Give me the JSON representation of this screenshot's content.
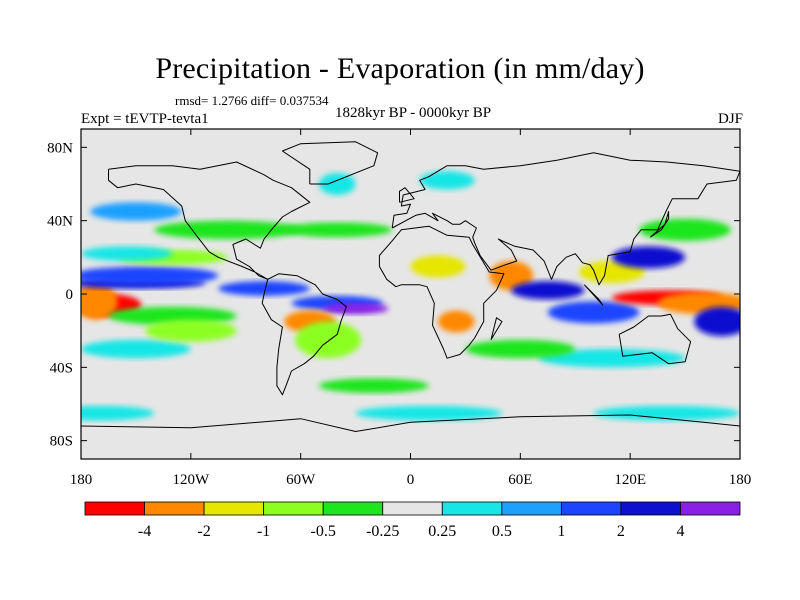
{
  "title": "Precipitation - Evaporation (in mm/day)",
  "stats_text": "rmsd= 1.2766 diff= 0.037534",
  "period": "1828kyr BP - 0000kyr BP",
  "experiment": "Expt = tEVTP-tevta1",
  "season": "DJF",
  "colors": {
    "background": "#e6e6e6",
    "frame": "#000000",
    "coast": "#000000"
  },
  "chart_data": {
    "type": "heatmap",
    "title": "Precipitation - Evaporation (in mm/day)",
    "units": "mm/day",
    "xlim": [
      -180,
      180
    ],
    "ylim": [
      -90,
      90
    ],
    "x_ticks": [
      {
        "value": -180,
        "label": "180"
      },
      {
        "value": -120,
        "label": "120W"
      },
      {
        "value": -60,
        "label": "60W"
      },
      {
        "value": 0,
        "label": "0"
      },
      {
        "value": 60,
        "label": "60E"
      },
      {
        "value": 120,
        "label": "120E"
      },
      {
        "value": 180,
        "label": "180"
      }
    ],
    "y_ticks": [
      {
        "value": 80,
        "label": "80N"
      },
      {
        "value": 40,
        "label": "40N"
      },
      {
        "value": 0,
        "label": "0"
      },
      {
        "value": -40,
        "label": "40S"
      },
      {
        "value": -80,
        "label": "80S"
      }
    ],
    "levels": [
      {
        "color": "#ff0000",
        "range": "< -4"
      },
      {
        "color": "#ff8800",
        "range": "-4 to -2"
      },
      {
        "color": "#e6e600",
        "range": "-2 to -1"
      },
      {
        "color": "#8cff20",
        "range": "-1 to -0.5"
      },
      {
        "color": "#1ee61e",
        "range": "-0.5 to -0.25"
      },
      {
        "color": "#e6e6e6",
        "range": "-0.25 to 0.25"
      },
      {
        "color": "#18e6e6",
        "range": "0.25 to 0.5"
      },
      {
        "color": "#1ea0ff",
        "range": "0.5 to 1"
      },
      {
        "color": "#1e44ff",
        "range": "1 to 2"
      },
      {
        "color": "#0f0fd0",
        "range": "2 to 4"
      },
      {
        "color": "#8a20e6",
        "range": "> 4"
      }
    ],
    "colorbar_labels": [
      "-4",
      "-2",
      "-1",
      "-0.5",
      "-0.25",
      "0.25",
      "0.5",
      "1",
      "2",
      "4"
    ],
    "regions": [
      {
        "lon": -165,
        "lat": -6,
        "rlon": 18,
        "rlat": 6,
        "level": 0
      },
      {
        "lon": -172,
        "lat": -4,
        "rlon": 12,
        "rlat": 10,
        "level": 1
      },
      {
        "lon": -150,
        "lat": 6,
        "rlon": 38,
        "rlat": 3,
        "level": 9
      },
      {
        "lon": -145,
        "lat": 10,
        "rlon": 40,
        "rlat": 5,
        "level": 8
      },
      {
        "lon": -130,
        "lat": 20,
        "rlon": 30,
        "rlat": 4,
        "level": 3
      },
      {
        "lon": -155,
        "lat": 22,
        "rlon": 25,
        "rlat": 4,
        "level": 6
      },
      {
        "lon": -130,
        "lat": -12,
        "rlon": 35,
        "rlat": 5,
        "level": 4
      },
      {
        "lon": -150,
        "lat": -30,
        "rlon": 30,
        "rlat": 5,
        "level": 6
      },
      {
        "lon": -120,
        "lat": -20,
        "rlon": 25,
        "rlat": 6,
        "level": 3
      },
      {
        "lon": -80,
        "lat": 3,
        "rlon": 25,
        "rlat": 4,
        "level": 8
      },
      {
        "lon": -40,
        "lat": -5,
        "rlon": 25,
        "rlat": 4,
        "level": 8
      },
      {
        "lon": -30,
        "lat": -8,
        "rlon": 18,
        "rlat": 3,
        "level": 10
      },
      {
        "lon": -55,
        "lat": -15,
        "rlon": 14,
        "rlat": 6,
        "level": 1
      },
      {
        "lon": -45,
        "lat": -25,
        "rlon": 18,
        "rlat": 10,
        "level": 3
      },
      {
        "lon": -100,
        "lat": 35,
        "rlon": 40,
        "rlat": 5,
        "level": 4
      },
      {
        "lon": -150,
        "lat": 45,
        "rlon": 25,
        "rlat": 5,
        "level": 7
      },
      {
        "lon": -40,
        "lat": 35,
        "rlon": 30,
        "rlat": 4,
        "level": 4
      },
      {
        "lon": 15,
        "lat": 15,
        "rlon": 15,
        "rlat": 6,
        "level": 2
      },
      {
        "lon": 25,
        "lat": -15,
        "rlon": 10,
        "rlat": 6,
        "level": 1
      },
      {
        "lon": 55,
        "lat": 10,
        "rlon": 12,
        "rlat": 8,
        "level": 1
      },
      {
        "lon": 75,
        "lat": 2,
        "rlon": 20,
        "rlat": 5,
        "level": 9
      },
      {
        "lon": 100,
        "lat": -10,
        "rlon": 25,
        "rlat": 6,
        "level": 8
      },
      {
        "lon": 140,
        "lat": -2,
        "rlon": 30,
        "rlat": 4,
        "level": 0
      },
      {
        "lon": 160,
        "lat": -5,
        "rlon": 25,
        "rlat": 6,
        "level": 1
      },
      {
        "lon": 170,
        "lat": -15,
        "rlon": 15,
        "rlat": 8,
        "level": 9
      },
      {
        "lon": 110,
        "lat": 12,
        "rlon": 18,
        "rlat": 6,
        "level": 2
      },
      {
        "lon": 130,
        "lat": 20,
        "rlon": 20,
        "rlat": 6,
        "level": 9
      },
      {
        "lon": 150,
        "lat": 35,
        "rlon": 25,
        "rlat": 6,
        "level": 4
      },
      {
        "lon": 110,
        "lat": -35,
        "rlon": 40,
        "rlat": 5,
        "level": 6
      },
      {
        "lon": 60,
        "lat": -30,
        "rlon": 30,
        "rlat": 5,
        "level": 4
      },
      {
        "lon": -40,
        "lat": 60,
        "rlon": 10,
        "rlat": 6,
        "level": 6
      },
      {
        "lon": 20,
        "lat": 62,
        "rlon": 15,
        "rlat": 5,
        "level": 6
      },
      {
        "lon": -170,
        "lat": -65,
        "rlon": 30,
        "rlat": 4,
        "level": 6
      },
      {
        "lon": 10,
        "lat": -65,
        "rlon": 40,
        "rlat": 4,
        "level": 6
      },
      {
        "lon": 140,
        "lat": -65,
        "rlon": 40,
        "rlat": 4,
        "level": 6
      },
      {
        "lon": -20,
        "lat": -50,
        "rlon": 30,
        "rlat": 4,
        "level": 4
      }
    ],
    "coastlines": [
      [
        [
          -165,
          68
        ],
        [
          -150,
          70
        ],
        [
          -130,
          70
        ],
        [
          -115,
          68
        ],
        [
          -95,
          72
        ],
        [
          -80,
          65
        ],
        [
          -75,
          62
        ],
        [
          -65,
          58
        ],
        [
          -55,
          50
        ],
        [
          -65,
          45
        ],
        [
          -70,
          42
        ],
        [
          -76,
          35
        ],
        [
          -80,
          30
        ],
        [
          -82,
          25
        ],
        [
          -90,
          30
        ],
        [
          -97,
          27
        ],
        [
          -95,
          19
        ],
        [
          -88,
          15
        ],
        [
          -83,
          10
        ],
        [
          -78,
          8
        ],
        [
          -85,
          12
        ],
        [
          -92,
          15
        ],
        [
          -105,
          20
        ],
        [
          -110,
          23
        ],
        [
          -117,
          32
        ],
        [
          -123,
          40
        ],
        [
          -125,
          48
        ],
        [
          -135,
          57
        ],
        [
          -150,
          60
        ],
        [
          -160,
          58
        ],
        [
          -165,
          62
        ],
        [
          -165,
          68
        ]
      ],
      [
        [
          -78,
          8
        ],
        [
          -72,
          11
        ],
        [
          -62,
          10
        ],
        [
          -52,
          5
        ],
        [
          -48,
          0
        ],
        [
          -40,
          -3
        ],
        [
          -35,
          -7
        ],
        [
          -38,
          -15
        ],
        [
          -40,
          -22
        ],
        [
          -48,
          -28
        ],
        [
          -53,
          -34
        ],
        [
          -58,
          -38
        ],
        [
          -65,
          -42
        ],
        [
          -68,
          -50
        ],
        [
          -70,
          -55
        ],
        [
          -73,
          -50
        ],
        [
          -73,
          -40
        ],
        [
          -72,
          -30
        ],
        [
          -70,
          -18
        ],
        [
          -76,
          -14
        ],
        [
          -81,
          -5
        ],
        [
          -80,
          0
        ],
        [
          -78,
          8
        ]
      ],
      [
        [
          -17,
          15
        ],
        [
          -17,
          21
        ],
        [
          -10,
          29
        ],
        [
          -5,
          35
        ],
        [
          10,
          37
        ],
        [
          20,
          32
        ],
        [
          32,
          31
        ],
        [
          34,
          27
        ],
        [
          43,
          12
        ],
        [
          51,
          11
        ],
        [
          47,
          2
        ],
        [
          40,
          -5
        ],
        [
          40,
          -15
        ],
        [
          35,
          -24
        ],
        [
          32,
          -28
        ],
        [
          27,
          -33
        ],
        [
          20,
          -35
        ],
        [
          18,
          -30
        ],
        [
          12,
          -17
        ],
        [
          13,
          -5
        ],
        [
          9,
          4
        ],
        [
          5,
          5
        ],
        [
          -5,
          5
        ],
        [
          -8,
          4
        ],
        [
          -13,
          8
        ],
        [
          -17,
          15
        ]
      ],
      [
        [
          -10,
          36
        ],
        [
          -9,
          43
        ],
        [
          -2,
          44
        ],
        [
          0,
          49
        ],
        [
          -5,
          48
        ],
        [
          -4,
          54
        ],
        [
          8,
          57
        ],
        [
          5,
          62
        ],
        [
          10,
          64
        ],
        [
          20,
          70
        ],
        [
          30,
          70
        ],
        [
          40,
          68
        ],
        [
          60,
          70
        ],
        [
          80,
          73
        ],
        [
          100,
          77
        ],
        [
          120,
          73
        ],
        [
          140,
          72
        ],
        [
          160,
          70
        ],
        [
          180,
          67
        ],
        [
          178,
          62
        ],
        [
          162,
          60
        ],
        [
          157,
          52
        ],
        [
          143,
          52
        ],
        [
          140,
          46
        ],
        [
          135,
          35
        ],
        [
          126,
          35
        ],
        [
          122,
          30
        ],
        [
          120,
          23
        ],
        [
          108,
          21
        ],
        [
          106,
          10
        ],
        [
          103,
          5
        ],
        [
          100,
          13
        ],
        [
          98,
          16
        ],
        [
          94,
          17
        ],
        [
          90,
          22
        ],
        [
          85,
          20
        ],
        [
          80,
          15
        ],
        [
          77,
          8
        ],
        [
          73,
          18
        ],
        [
          67,
          24
        ],
        [
          57,
          26
        ],
        [
          50,
          29
        ],
        [
          48,
          30
        ],
        [
          55,
          24
        ],
        [
          58,
          18
        ],
        [
          52,
          16
        ],
        [
          44,
          13
        ],
        [
          38,
          21
        ],
        [
          35,
          28
        ],
        [
          34,
          31
        ],
        [
          36,
          36
        ],
        [
          30,
          40
        ],
        [
          27,
          38
        ],
        [
          23,
          38
        ],
        [
          20,
          40
        ],
        [
          12,
          44
        ],
        [
          15,
          40
        ],
        [
          8,
          44
        ],
        [
          3,
          43
        ],
        [
          -10,
          36
        ]
      ],
      [
        [
          114,
          -22
        ],
        [
          122,
          -18
        ],
        [
          130,
          -12
        ],
        [
          137,
          -12
        ],
        [
          142,
          -11
        ],
        [
          146,
          -19
        ],
        [
          153,
          -26
        ],
        [
          150,
          -37
        ],
        [
          141,
          -38
        ],
        [
          132,
          -32
        ],
        [
          116,
          -34
        ],
        [
          114,
          -22
        ]
      ],
      [
        [
          -55,
          60
        ],
        [
          -45,
          60
        ],
        [
          -20,
          70
        ],
        [
          -18,
          77
        ],
        [
          -30,
          83
        ],
        [
          -60,
          82
        ],
        [
          -70,
          78
        ],
        [
          -55,
          68
        ],
        [
          -55,
          60
        ]
      ],
      [
        [
          95,
          5
        ],
        [
          105,
          -6
        ],
        [
          103,
          -3
        ],
        [
          95,
          5
        ]
      ],
      [
        [
          131,
          31
        ],
        [
          137,
          35
        ],
        [
          141,
          41
        ],
        [
          141,
          45
        ],
        [
          139,
          38
        ],
        [
          131,
          31
        ]
      ],
      [
        [
          44,
          -25
        ],
        [
          50,
          -15
        ],
        [
          47,
          -13
        ],
        [
          44,
          -25
        ]
      ],
      [
        [
          -6,
          50
        ],
        [
          2,
          52
        ],
        [
          -3,
          58
        ],
        [
          -6,
          56
        ],
        [
          -6,
          50
        ]
      ],
      [
        [
          -180,
          -72
        ],
        [
          -120,
          -73
        ],
        [
          -60,
          -68
        ],
        [
          -30,
          -75
        ],
        [
          0,
          -70
        ],
        [
          60,
          -67
        ],
        [
          120,
          -66
        ],
        [
          160,
          -70
        ],
        [
          180,
          -72
        ]
      ]
    ]
  }
}
